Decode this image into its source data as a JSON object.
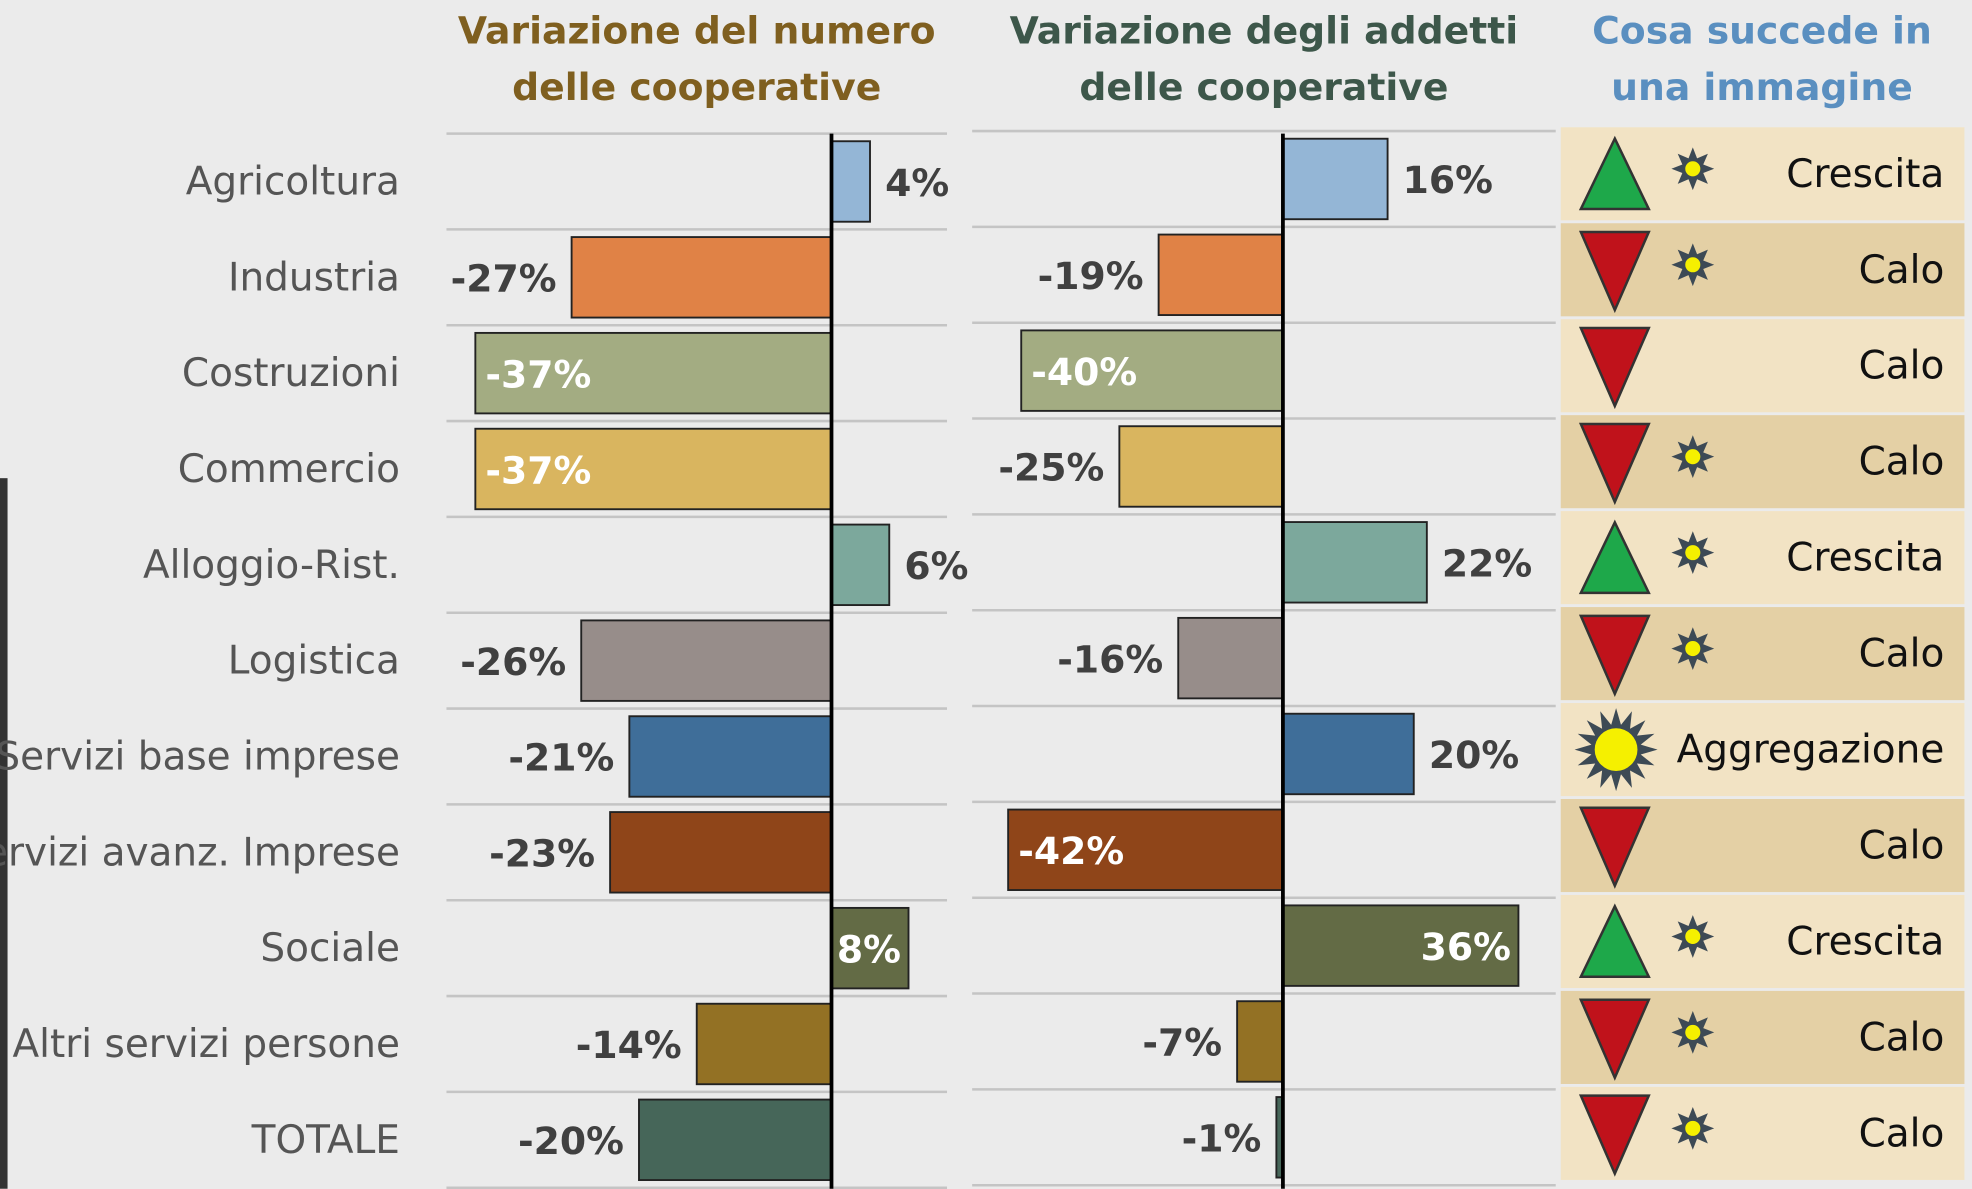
{
  "chart_data": [
    {
      "type": "bar",
      "orientation": "horizontal",
      "title": [
        "Variazione del numero",
        "delle cooperative"
      ],
      "title_color": "#7f5f1f",
      "categories": [
        "Agricoltura",
        "Industria",
        "Costruzioni",
        "Commercio",
        "Alloggio-Rist.",
        "Logistica",
        "Servizi base imprese",
        "Servizi avanz. Imprese",
        "Sociale",
        "Altri servizi persone",
        "TOTALE"
      ],
      "colors": [
        "#94b6d6",
        "#e08246",
        "#a3ac82",
        "#d9b55f",
        "#7ca89c",
        "#978d8a",
        "#3f6e99",
        "#8f4519",
        "#636b45",
        "#937124",
        "#466659"
      ],
      "values": [
        4,
        -27,
        -37,
        -37,
        6,
        -26,
        -21,
        -23,
        8,
        -14,
        -20
      ],
      "value_labels": [
        "4%",
        "-27%",
        "-37%",
        "-37%",
        "6%",
        "-26%",
        "-21%",
        "-23%",
        "8%",
        "-14%",
        "-20%"
      ],
      "labels_inside": [
        false,
        false,
        true,
        true,
        false,
        false,
        false,
        false,
        true,
        false,
        false
      ],
      "xlim": [
        -40,
        12
      ],
      "grid": true
    },
    {
      "type": "bar",
      "orientation": "horizontal",
      "title": [
        "Variazione degli addetti",
        "delle cooperative"
      ],
      "title_color": "#3d574a",
      "colors": [
        "#94b6d6",
        "#e08246",
        "#a3ac82",
        "#d9b55f",
        "#7ca89c",
        "#978d8a",
        "#3f6e99",
        "#8f4519",
        "#636b45",
        "#937124",
        "#466659"
      ],
      "values": [
        16,
        -19,
        -40,
        -25,
        22,
        -16,
        20,
        -42,
        36,
        -7,
        -1
      ],
      "value_labels": [
        "16%",
        "-19%",
        "-40%",
        "-25%",
        "22%",
        "-16%",
        "20%",
        "-42%",
        "36%",
        "-7%",
        "-1%"
      ],
      "labels_inside": [
        false,
        false,
        true,
        false,
        false,
        false,
        false,
        true,
        true,
        false,
        false
      ],
      "xlim": [
        -47.5,
        41.7
      ],
      "grid": true
    }
  ],
  "summary": {
    "title": [
      "Cosa succede in",
      "una immagine"
    ],
    "title_color": "#5a8fc0",
    "rows": [
      {
        "label": "Crescita",
        "arrow": "up",
        "star": true
      },
      {
        "label": "Calo",
        "arrow": "down",
        "star": true
      },
      {
        "label": "Calo",
        "arrow": "down",
        "star": false
      },
      {
        "label": "Calo",
        "arrow": "down",
        "star": true
      },
      {
        "label": "Crescita",
        "arrow": "up",
        "star": true
      },
      {
        "label": "Calo",
        "arrow": "down",
        "star": true
      },
      {
        "label": "Aggregazione",
        "arrow": null,
        "star": "large"
      },
      {
        "label": "Calo",
        "arrow": "down",
        "star": false
      },
      {
        "label": "Crescita",
        "arrow": "up",
        "star": true
      },
      {
        "label": "Calo",
        "arrow": "down",
        "star": true
      },
      {
        "label": "Calo",
        "arrow": "down",
        "star": true
      }
    ]
  }
}
